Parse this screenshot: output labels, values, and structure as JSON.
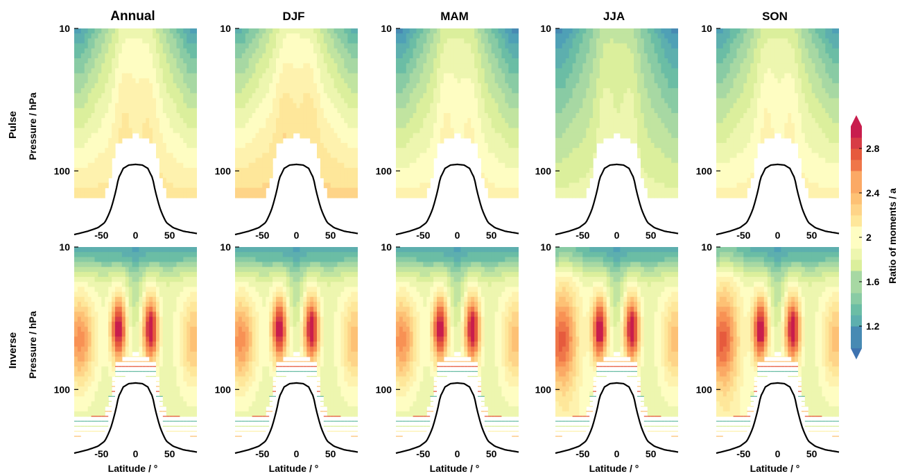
{
  "chart_data": {
    "type": "heatmap",
    "columns": [
      "Annual",
      "DJF",
      "MAM",
      "JJA",
      "SON"
    ],
    "rows": [
      "Pulse",
      "Inverse"
    ],
    "xlabel": "Latitude / °",
    "ylabel": "Pressure / hPa",
    "colorbar_label": "Ratio of moments / a",
    "x_ticks": [
      -50,
      0,
      50
    ],
    "xlim": [
      -90,
      90
    ],
    "y_ticks": [
      10,
      100
    ],
    "ylim": [
      10,
      250
    ],
    "y_scale": "log",
    "y_inverted": true,
    "colorbar_ticks": [
      "1.2",
      "1.6",
      "2",
      "2.4",
      "2.8"
    ],
    "colorbar_range": [
      1.0,
      3.0
    ],
    "colormap": [
      "#3e73b0",
      "#4fa0b6",
      "#6bbda5",
      "#a7d8a3",
      "#dbef9c",
      "#fefdc2",
      "#fee79a",
      "#fdc175",
      "#f89154",
      "#e65a3d",
      "#c81d4d"
    ],
    "tropopause_pressure_hPa": [
      {
        "lat": -90,
        "p": 280
      },
      {
        "lat": -70,
        "p": 265
      },
      {
        "lat": -55,
        "p": 250
      },
      {
        "lat": -45,
        "p": 230
      },
      {
        "lat": -37,
        "p": 190
      },
      {
        "lat": -30,
        "p": 145
      },
      {
        "lat": -25,
        "p": 112
      },
      {
        "lat": -18,
        "p": 96
      },
      {
        "lat": -10,
        "p": 91
      },
      {
        "lat": 0,
        "p": 90
      },
      {
        "lat": 10,
        "p": 91
      },
      {
        "lat": 18,
        "p": 96
      },
      {
        "lat": 25,
        "p": 112
      },
      {
        "lat": 30,
        "p": 145
      },
      {
        "lat": 37,
        "p": 190
      },
      {
        "lat": 45,
        "p": 230
      },
      {
        "lat": 55,
        "p": 250
      },
      {
        "lat": 70,
        "p": 265
      },
      {
        "lat": 90,
        "p": 275
      }
    ],
    "panels": [
      {
        "row": "Pulse",
        "column": "Annual",
        "polar_top_ratio": 1.2,
        "tropics_top_ratio": 1.9,
        "lower_strat_ratio": 2.2
      },
      {
        "row": "Pulse",
        "column": "DJF",
        "polar_top_ratio": 1.3,
        "tropics_top_ratio": 1.9,
        "lower_strat_ratio": 2.3
      },
      {
        "row": "Pulse",
        "column": "MAM",
        "polar_top_ratio": 1.1,
        "tropics_top_ratio": 1.8,
        "lower_strat_ratio": 2.1
      },
      {
        "row": "Pulse",
        "column": "JJA",
        "polar_top_ratio": 1.1,
        "tropics_top_ratio": 1.7,
        "lower_strat_ratio": 1.9
      },
      {
        "row": "Pulse",
        "column": "SON",
        "polar_top_ratio": 1.2,
        "tropics_top_ratio": 1.8,
        "lower_strat_ratio": 2.1
      },
      {
        "row": "Inverse",
        "column": "Annual",
        "peak_ratio": 2.9,
        "peak_lats": [
          -25,
          22
        ],
        "peak_p_hPa": 38
      },
      {
        "row": "Inverse",
        "column": "DJF",
        "peak_ratio": 2.9,
        "peak_lats": [
          -25,
          22
        ],
        "peak_p_hPa": 38
      },
      {
        "row": "Inverse",
        "column": "MAM",
        "peak_ratio": 2.9,
        "peak_lats": [
          -25,
          22
        ],
        "peak_p_hPa": 38
      },
      {
        "row": "Inverse",
        "column": "JJA",
        "peak_ratio": 3.0,
        "peak_lats": [
          -25,
          22
        ],
        "peak_p_hPa": 38
      },
      {
        "row": "Inverse",
        "column": "SON",
        "peak_ratio": 3.0,
        "peak_lats": [
          -25,
          22
        ],
        "peak_p_hPa": 38
      }
    ]
  }
}
